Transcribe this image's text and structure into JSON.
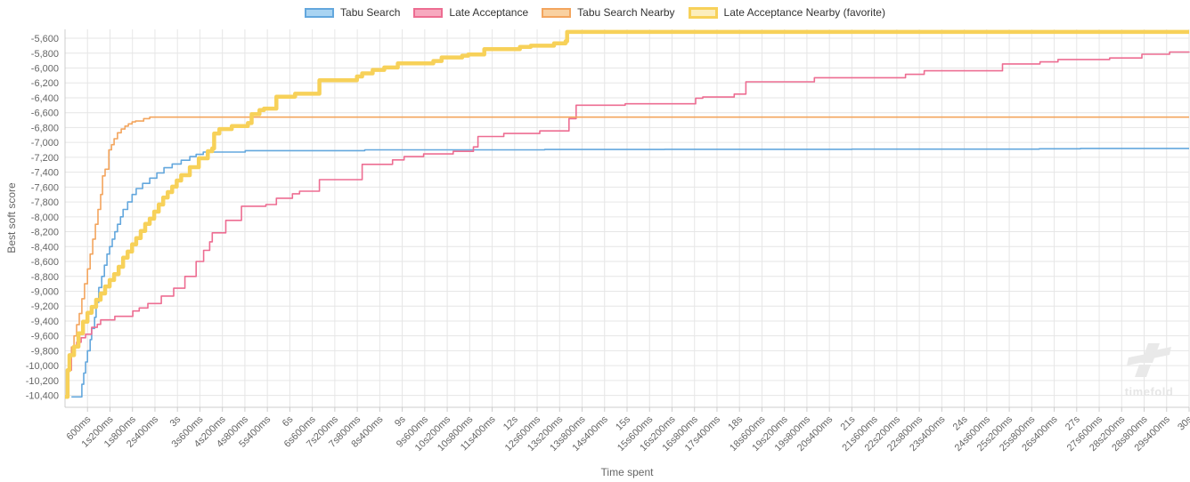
{
  "watermark": {
    "text": "timefold"
  },
  "colors": {
    "grid": "#e6e6e6",
    "axis_line": "#cccccc",
    "tick_label": "#666666",
    "axis_title": "#666666",
    "legend_text": "#333333",
    "background": "#ffffff"
  },
  "chart_data": {
    "type": "line",
    "step_mode": "step-after",
    "title": "",
    "xlabel": "Time spent",
    "ylabel": "Best soft score",
    "grid": true,
    "legend_position": "top",
    "x_axis": {
      "min_s": 0,
      "max_s": 30,
      "tick_interval_s": 0.6,
      "tick_labels": [
        "600ms",
        "1s200ms",
        "1s800ms",
        "2s400ms",
        "3s",
        "3s600ms",
        "4s200ms",
        "4s800ms",
        "5s400ms",
        "6s",
        "6s600ms",
        "7s200ms",
        "7s800ms",
        "8s400ms",
        "9s",
        "9s600ms",
        "10s200ms",
        "10s800ms",
        "11s400ms",
        "12s",
        "12s600ms",
        "13s200ms",
        "13s800ms",
        "14s400ms",
        "15s",
        "15s600ms",
        "16s200ms",
        "16s800ms",
        "17s400ms",
        "18s",
        "18s600ms",
        "19s200ms",
        "19s800ms",
        "20s400ms",
        "21s",
        "21s600ms",
        "22s200ms",
        "22s800ms",
        "23s400ms",
        "24s",
        "24s600ms",
        "25s200ms",
        "25s800ms",
        "26s400ms",
        "27s",
        "27s600ms",
        "28s200ms",
        "28s800ms",
        "29s400ms",
        "30s"
      ]
    },
    "y_axis": {
      "tick_start": -5600,
      "tick_step": -200,
      "tick_labels": [
        "-5,600",
        "-5,800",
        "-6,000",
        "-6,200",
        "-6,400",
        "-6,600",
        "-6,800",
        "-7,000",
        "-7,200",
        "-7,400",
        "-7,600",
        "-7,800",
        "-8,000",
        "-8,200",
        "-8,400",
        "-8,600",
        "-8,800",
        "-9,000",
        "-9,200",
        "-9,400",
        "-9,600",
        "-9,800",
        "-10,000",
        "-10,200",
        "-10,400"
      ],
      "render_max": -5480,
      "render_min": -10560
    },
    "series": [
      {
        "name": "Tabu Search",
        "color": "#63a7dd",
        "legend_fill": "#a9d4f2",
        "line_width": 1.6,
        "points": [
          [
            0.17,
            -10420
          ],
          [
            0.45,
            -10250
          ],
          [
            0.5,
            -10100
          ],
          [
            0.55,
            -9950
          ],
          [
            0.6,
            -9800
          ],
          [
            0.67,
            -9650
          ],
          [
            0.71,
            -9500
          ],
          [
            0.79,
            -9350
          ],
          [
            0.83,
            -9150
          ],
          [
            0.9,
            -8950
          ],
          [
            0.98,
            -8800
          ],
          [
            1.05,
            -8650
          ],
          [
            1.12,
            -8500
          ],
          [
            1.19,
            -8400
          ],
          [
            1.26,
            -8300
          ],
          [
            1.33,
            -8200
          ],
          [
            1.4,
            -8100
          ],
          [
            1.48,
            -8000
          ],
          [
            1.55,
            -7900
          ],
          [
            1.67,
            -7800
          ],
          [
            1.79,
            -7700
          ],
          [
            1.9,
            -7620
          ],
          [
            2.07,
            -7550
          ],
          [
            2.26,
            -7480
          ],
          [
            2.45,
            -7410
          ],
          [
            2.64,
            -7340
          ],
          [
            2.86,
            -7290
          ],
          [
            3.1,
            -7240
          ],
          [
            3.33,
            -7190
          ],
          [
            3.5,
            -7160
          ],
          [
            3.69,
            -7130
          ],
          [
            4.81,
            -7110
          ],
          [
            8,
            -7100
          ],
          [
            12.8,
            -7095
          ],
          [
            16,
            -7092
          ],
          [
            21,
            -7090
          ],
          [
            26,
            -7085
          ],
          [
            27.1,
            -7080
          ],
          [
            30,
            -7080
          ]
        ]
      },
      {
        "name": "Late Acceptance",
        "color": "#ed6d92",
        "legend_fill": "#f7a9bf",
        "line_width": 1.6,
        "points": [
          [
            0.02,
            -10420
          ],
          [
            0.07,
            -10060
          ],
          [
            0.17,
            -9860
          ],
          [
            0.26,
            -9745
          ],
          [
            0.31,
            -9685
          ],
          [
            0.43,
            -9625
          ],
          [
            0.55,
            -9578
          ],
          [
            0.71,
            -9485
          ],
          [
            0.86,
            -9445
          ],
          [
            0.95,
            -9385
          ],
          [
            1.33,
            -9337
          ],
          [
            1.81,
            -9265
          ],
          [
            1.98,
            -9225
          ],
          [
            2.21,
            -9165
          ],
          [
            2.57,
            -9065
          ],
          [
            2.9,
            -8960
          ],
          [
            3.2,
            -8800
          ],
          [
            3.5,
            -8600
          ],
          [
            3.7,
            -8450
          ],
          [
            3.86,
            -8335
          ],
          [
            3.93,
            -8215
          ],
          [
            4.29,
            -8048
          ],
          [
            4.71,
            -7857
          ],
          [
            5.36,
            -7835
          ],
          [
            5.64,
            -7750
          ],
          [
            6.07,
            -7690
          ],
          [
            6.26,
            -7655
          ],
          [
            6.79,
            -7500
          ],
          [
            7.93,
            -7295
          ],
          [
            8.74,
            -7235
          ],
          [
            9.05,
            -7190
          ],
          [
            9.57,
            -7155
          ],
          [
            10.36,
            -7120
          ],
          [
            10.9,
            -7060
          ],
          [
            11.02,
            -6920
          ],
          [
            11.71,
            -6880
          ],
          [
            12.67,
            -6845
          ],
          [
            13.45,
            -6680
          ],
          [
            13.64,
            -6500
          ],
          [
            14.95,
            -6480
          ],
          [
            16.83,
            -6405
          ],
          [
            17.02,
            -6390
          ],
          [
            17.86,
            -6350
          ],
          [
            18.17,
            -6185
          ],
          [
            20,
            -6130
          ],
          [
            22.43,
            -6085
          ],
          [
            22.93,
            -6037
          ],
          [
            25.02,
            -5945
          ],
          [
            26.02,
            -5917
          ],
          [
            26.5,
            -5885
          ],
          [
            27.88,
            -5865
          ],
          [
            28.74,
            -5815
          ],
          [
            29.48,
            -5785
          ],
          [
            30,
            -5780
          ]
        ]
      },
      {
        "name": "Tabu Search Nearby",
        "color": "#f3a55e",
        "legend_fill": "#f9d1a1",
        "line_width": 1.6,
        "points": [
          [
            0.02,
            -10420
          ],
          [
            0.07,
            -10050
          ],
          [
            0.12,
            -9900
          ],
          [
            0.17,
            -9750
          ],
          [
            0.24,
            -9600
          ],
          [
            0.31,
            -9450
          ],
          [
            0.38,
            -9300
          ],
          [
            0.45,
            -9100
          ],
          [
            0.52,
            -8900
          ],
          [
            0.6,
            -8700
          ],
          [
            0.67,
            -8500
          ],
          [
            0.74,
            -8300
          ],
          [
            0.81,
            -8100
          ],
          [
            0.88,
            -7900
          ],
          [
            0.95,
            -7700
          ],
          [
            1.0,
            -7450
          ],
          [
            1.07,
            -7360
          ],
          [
            1.17,
            -7100
          ],
          [
            1.24,
            -7030
          ],
          [
            1.31,
            -6950
          ],
          [
            1.4,
            -6870
          ],
          [
            1.5,
            -6820
          ],
          [
            1.6,
            -6780
          ],
          [
            1.69,
            -6750
          ],
          [
            1.79,
            -6724
          ],
          [
            1.88,
            -6712
          ],
          [
            2.1,
            -6680
          ],
          [
            2.26,
            -6660
          ],
          [
            30,
            -6660
          ]
        ]
      },
      {
        "name": "Late Acceptance Nearby (favorite)",
        "color": "#f7d159",
        "legend_fill": "#fceebd",
        "line_width": 4.5,
        "points": [
          [
            0.0,
            -10420
          ],
          [
            0.07,
            -10060
          ],
          [
            0.12,
            -9860
          ],
          [
            0.24,
            -9745
          ],
          [
            0.36,
            -9565
          ],
          [
            0.48,
            -9410
          ],
          [
            0.6,
            -9290
          ],
          [
            0.71,
            -9210
          ],
          [
            0.83,
            -9115
          ],
          [
            0.95,
            -9030
          ],
          [
            1.07,
            -8935
          ],
          [
            1.19,
            -8850
          ],
          [
            1.31,
            -8770
          ],
          [
            1.43,
            -8672
          ],
          [
            1.55,
            -8550
          ],
          [
            1.67,
            -8467
          ],
          [
            1.79,
            -8370
          ],
          [
            1.9,
            -8287
          ],
          [
            2.02,
            -8190
          ],
          [
            2.14,
            -8095
          ],
          [
            2.26,
            -8025
          ],
          [
            2.38,
            -7930
          ],
          [
            2.5,
            -7835
          ],
          [
            2.62,
            -7740
          ],
          [
            2.74,
            -7667
          ],
          [
            2.86,
            -7595
          ],
          [
            2.98,
            -7512
          ],
          [
            3.1,
            -7440
          ],
          [
            3.33,
            -7333
          ],
          [
            3.57,
            -7213
          ],
          [
            3.81,
            -7118
          ],
          [
            3.93,
            -7080
          ],
          [
            3.98,
            -6880
          ],
          [
            4.12,
            -6820
          ],
          [
            4.45,
            -6780
          ],
          [
            4.88,
            -6740
          ],
          [
            4.98,
            -6620
          ],
          [
            5.19,
            -6565
          ],
          [
            5.31,
            -6545
          ],
          [
            5.64,
            -6385
          ],
          [
            6.14,
            -6345
          ],
          [
            6.79,
            -6165
          ],
          [
            7.79,
            -6113
          ],
          [
            7.93,
            -6072
          ],
          [
            8.21,
            -6025
          ],
          [
            8.52,
            -5993
          ],
          [
            8.88,
            -5938
          ],
          [
            9.83,
            -5905
          ],
          [
            10.05,
            -5858
          ],
          [
            10.6,
            -5834
          ],
          [
            10.76,
            -5818
          ],
          [
            11.19,
            -5747
          ],
          [
            12.14,
            -5715
          ],
          [
            12.43,
            -5700
          ],
          [
            13.05,
            -5668
          ],
          [
            13.36,
            -5640
          ],
          [
            13.4,
            -5515
          ],
          [
            30,
            -5515
          ]
        ]
      }
    ]
  }
}
